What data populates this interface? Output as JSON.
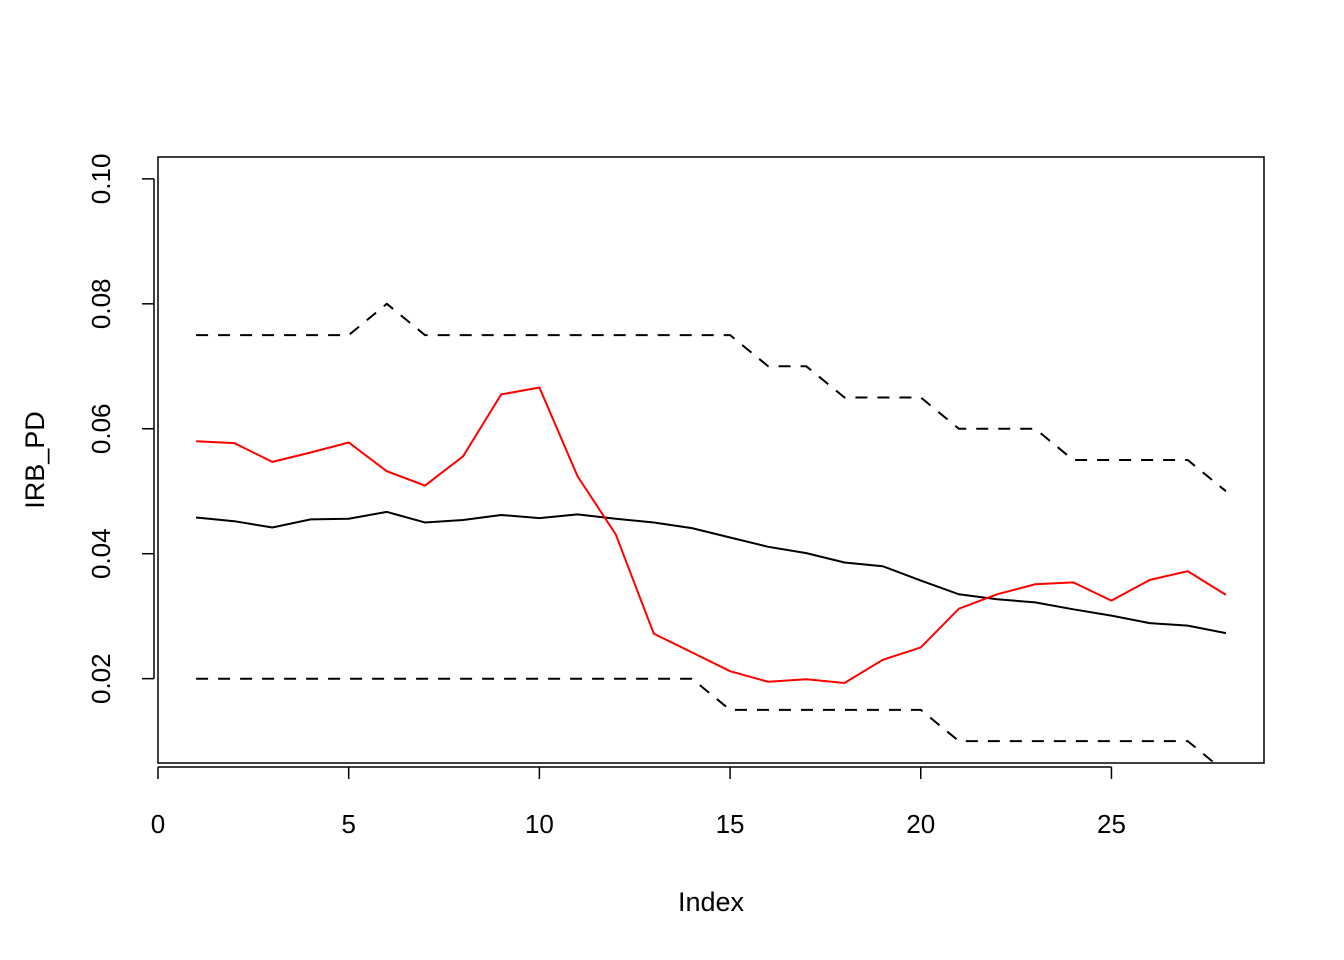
{
  "chart_data": {
    "type": "line",
    "title": "",
    "xlabel": "Index",
    "ylabel": "IRB_PD",
    "xlim": [
      0,
      29
    ],
    "ylim": [
      0.0065,
      0.1035
    ],
    "xticks": [
      0,
      5,
      10,
      15,
      20,
      25
    ],
    "yticks": [
      0.02,
      0.04,
      0.06,
      0.08,
      0.1
    ],
    "ytick_labels": [
      "0.02",
      "0.04",
      "0.06",
      "0.08",
      "0.10"
    ],
    "grid": false,
    "legend": "none",
    "x": [
      1,
      2,
      3,
      4,
      5,
      6,
      7,
      8,
      9,
      10,
      11,
      12,
      13,
      14,
      15,
      16,
      17,
      18,
      19,
      20,
      21,
      22,
      23,
      24,
      25,
      26,
      27,
      28
    ],
    "series": [
      {
        "color": "#000000",
        "dash": "solid",
        "values": [
          0.0458,
          0.0452,
          0.0442,
          0.0455,
          0.0456,
          0.0467,
          0.045,
          0.0454,
          0.0462,
          0.0457,
          0.0463,
          0.0456,
          0.045,
          0.0441,
          0.0426,
          0.0411,
          0.0401,
          0.0386,
          0.038,
          0.0357,
          0.0335,
          0.0327,
          0.0322,
          0.0311,
          0.0301,
          0.0289,
          0.0285,
          0.0273
        ]
      },
      {
        "color": "#ff0000",
        "dash": "solid",
        "values": [
          0.058,
          0.0577,
          0.0547,
          0.0562,
          0.0578,
          0.0532,
          0.0509,
          0.0556,
          0.0655,
          0.0666,
          0.0524,
          0.0431,
          0.0272,
          0.0242,
          0.0212,
          0.0195,
          0.0199,
          0.0193,
          0.023,
          0.025,
          0.0312,
          0.0335,
          0.0351,
          0.0354,
          0.0325,
          0.0358,
          0.0372,
          0.0334
        ]
      },
      {
        "color": "#000000",
        "dash": "dashed",
        "values": [
          0.075,
          0.075,
          0.075,
          0.075,
          0.075,
          0.08,
          0.075,
          0.075,
          0.075,
          0.075,
          0.075,
          0.075,
          0.075,
          0.075,
          0.075,
          0.07,
          0.07,
          0.065,
          0.065,
          0.065,
          0.06,
          0.06,
          0.06,
          0.055,
          0.055,
          0.055,
          0.055,
          0.05
        ]
      },
      {
        "color": "#000000",
        "dash": "dashed",
        "values": [
          0.02,
          0.02,
          0.02,
          0.02,
          0.02,
          0.02,
          0.02,
          0.02,
          0.02,
          0.02,
          0.02,
          0.02,
          0.02,
          0.02,
          0.015,
          0.015,
          0.015,
          0.015,
          0.015,
          0.015,
          0.01,
          0.01,
          0.01,
          0.01,
          0.01,
          0.01,
          0.01,
          0.005
        ]
      }
    ]
  }
}
